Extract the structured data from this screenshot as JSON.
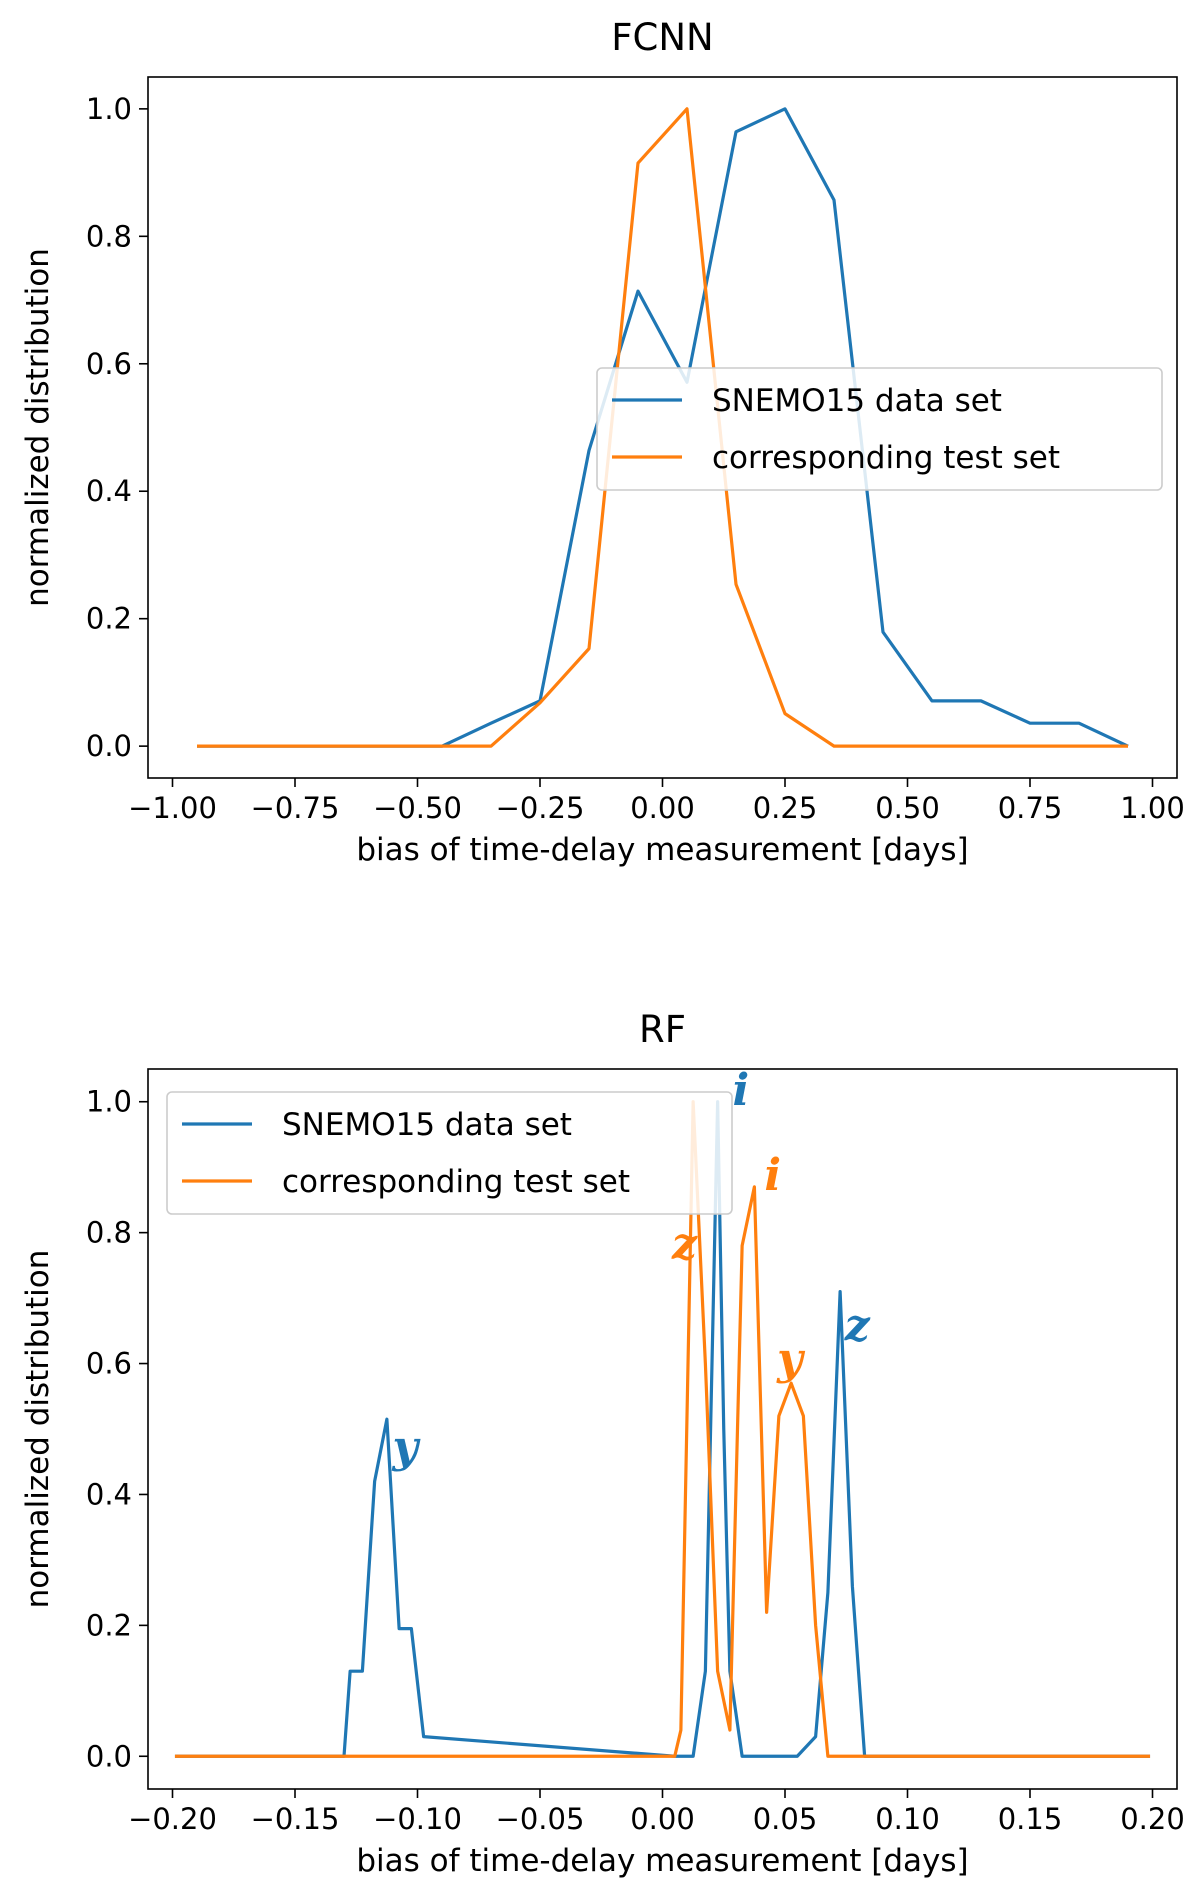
{
  "colors": {
    "blue": "#1f77b4",
    "orange": "#ff7f0e"
  },
  "chart_data": [
    {
      "type": "line",
      "title": "FCNN",
      "xlabel": "bias of time-delay measurement [days]",
      "ylabel": "normalized distribution",
      "xlim": [
        -1.05,
        1.05
      ],
      "ylim": [
        -0.05,
        1.05
      ],
      "xticks": [
        -1.0,
        -0.75,
        -0.5,
        -0.25,
        0.0,
        0.25,
        0.5,
        0.75,
        1.0
      ],
      "xtick_labels": [
        "−1.00",
        "−0.75",
        "−0.50",
        "−0.25",
        "0.00",
        "0.25",
        "0.50",
        "0.75",
        "1.00"
      ],
      "yticks": [
        0.0,
        0.2,
        0.4,
        0.6,
        0.8,
        1.0
      ],
      "ytick_labels": [
        "0.0",
        "0.2",
        "0.4",
        "0.6",
        "0.8",
        "1.0"
      ],
      "legend_position": "center-right",
      "series": [
        {
          "name": "SNEMO15 data set",
          "color": "#1f77b4",
          "x": [
            -0.95,
            -0.85,
            -0.75,
            -0.65,
            -0.55,
            -0.45,
            -0.35,
            -0.25,
            -0.15,
            -0.05,
            0.05,
            0.15,
            0.25,
            0.35,
            0.45,
            0.55,
            0.65,
            0.75,
            0.85,
            0.95
          ],
          "y": [
            0,
            0,
            0,
            0,
            0,
            0,
            0.036,
            0.071,
            0.464,
            0.714,
            0.571,
            0.964,
            1.0,
            0.857,
            0.179,
            0.071,
            0.071,
            0.036,
            0.036,
            0
          ]
        },
        {
          "name": "corresponding test set",
          "color": "#ff7f0e",
          "x": [
            -0.95,
            -0.85,
            -0.75,
            -0.65,
            -0.55,
            -0.45,
            -0.35,
            -0.25,
            -0.15,
            -0.05,
            0.05,
            0.15,
            0.25,
            0.35,
            0.45,
            0.55,
            0.65,
            0.75,
            0.85,
            0.95
          ],
          "y": [
            0,
            0,
            0,
            0,
            0,
            0,
            0,
            0.068,
            0.153,
            0.915,
            1.0,
            0.254,
            0.051,
            0,
            0,
            0,
            0,
            0,
            0,
            0
          ]
        }
      ],
      "annotations": []
    },
    {
      "type": "line",
      "title": "RF",
      "xlabel": "bias of time-delay measurement [days]",
      "ylabel": "normalized distribution",
      "xlim": [
        -0.21,
        0.21
      ],
      "ylim": [
        -0.05,
        1.05
      ],
      "xticks": [
        -0.2,
        -0.15,
        -0.1,
        -0.05,
        0.0,
        0.05,
        0.1,
        0.15,
        0.2
      ],
      "xtick_labels": [
        "−0.20",
        "−0.15",
        "−0.10",
        "−0.05",
        "0.00",
        "0.05",
        "0.10",
        "0.15",
        "0.20"
      ],
      "yticks": [
        0.0,
        0.2,
        0.4,
        0.6,
        0.8,
        1.0
      ],
      "ytick_labels": [
        "0.0",
        "0.2",
        "0.4",
        "0.6",
        "0.8",
        "1.0"
      ],
      "legend_position": "upper-left",
      "series": [
        {
          "name": "SNEMO15 data set",
          "color": "#1f77b4",
          "x": [
            -0.199,
            -0.13,
            -0.1275,
            -0.1225,
            -0.1175,
            -0.1125,
            -0.1075,
            -0.1025,
            -0.0975,
            0.005,
            0.0125,
            0.0175,
            0.0225,
            0.025,
            0.0275,
            0.0325,
            0.0425,
            0.055,
            0.0625,
            0.0675,
            0.0725,
            0.0775,
            0.0825,
            0.199
          ],
          "y": [
            0,
            0,
            0.13,
            0.13,
            0.42,
            0.515,
            0.195,
            0.195,
            0.03,
            0,
            0,
            0.13,
            1.0,
            0.5,
            0.13,
            0,
            0,
            0,
            0.03,
            0.25,
            0.71,
            0.26,
            0,
            0
          ]
        },
        {
          "name": "corresponding test set",
          "color": "#ff7f0e",
          "x": [
            -0.199,
            0.005,
            0.0075,
            0.0125,
            0.0175,
            0.0225,
            0.0275,
            0.0325,
            0.0375,
            0.0425,
            0.0475,
            0.0525,
            0.0575,
            0.0625,
            0.0675,
            0.199
          ],
          "y": [
            0,
            0,
            0.04,
            1.0,
            0.6,
            0.13,
            0.04,
            0.78,
            0.87,
            0.22,
            0.52,
            0.57,
            0.52,
            0.2,
            0,
            0
          ]
        }
      ],
      "annotations": [
        {
          "text": "i",
          "x": 0.032,
          "y": 0.995,
          "color": "#1f77b4"
        },
        {
          "text": "i",
          "x": 0.045,
          "y": 0.865,
          "color": "#ff7f0e"
        },
        {
          "text": "z",
          "x": 0.009,
          "y": 0.76,
          "color": "#ff7f0e"
        },
        {
          "text": "z",
          "x": 0.0795,
          "y": 0.635,
          "color": "#1f77b4"
        },
        {
          "text": "y",
          "x": 0.052,
          "y": 0.585,
          "color": "#ff7f0e"
        },
        {
          "text": "y",
          "x": -0.105,
          "y": 0.45,
          "color": "#1f77b4"
        }
      ]
    }
  ]
}
